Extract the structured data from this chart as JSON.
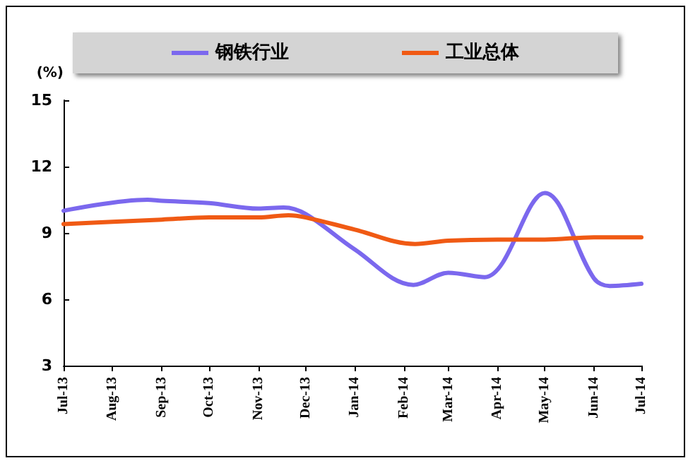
{
  "chart_data": {
    "type": "line",
    "ylabel": "(%)",
    "legend": "top",
    "grid": false,
    "marker": "none",
    "line_style": "solid",
    "xlim": [
      "2013-07-01",
      "2014-07-01"
    ],
    "xticks": [
      {
        "value": "2013-07-01",
        "label": "Jul-13"
      },
      {
        "value": "2013-08-01",
        "label": "Aug-13"
      },
      {
        "value": "2013-09-01",
        "label": "Sep-13"
      },
      {
        "value": "2013-10-01",
        "label": "Oct-13"
      },
      {
        "value": "2013-11-01",
        "label": "Nov-13"
      },
      {
        "value": "2013-12-01",
        "label": "Dec-13"
      },
      {
        "value": "2014-01-01",
        "label": "Jan-14"
      },
      {
        "value": "2014-02-01",
        "label": "Feb-14"
      },
      {
        "value": "2014-03-01",
        "label": "Mar-14"
      },
      {
        "value": "2014-04-01",
        "label": "Apr-14"
      },
      {
        "value": "2014-05-01",
        "label": "May-14"
      },
      {
        "value": "2014-06-01",
        "label": "Jun-14"
      },
      {
        "value": "2014-07-01",
        "label": "Jul-14"
      }
    ],
    "ylim": [
      3,
      15
    ],
    "yticks": [
      3,
      6,
      9,
      12,
      15
    ],
    "series": [
      {
        "name": "钢铁行业",
        "color": "#7b68ee",
        "x": [
          "2013-07-01",
          "2013-08-23",
          "2013-09-01",
          "2013-10-01",
          "2013-11-01",
          "2013-11-17",
          "2013-12-01",
          "2014-01-01",
          "2014-02-07",
          "2014-03-01",
          "2014-03-24",
          "2014-05-01",
          "2014-06-01",
          "2014-06-11",
          "2014-07-01"
        ],
        "values": [
          10.0,
          10.5,
          10.45,
          10.35,
          10.1,
          10.15,
          9.85,
          8.25,
          6.65,
          7.2,
          7.0,
          10.8,
          6.95,
          6.6,
          6.7
        ]
      },
      {
        "name": "工业总体",
        "color": "#f05a14",
        "x": [
          "2013-07-01",
          "2013-08-01",
          "2013-09-01",
          "2013-10-01",
          "2013-11-01",
          "2013-11-20",
          "2013-12-01",
          "2014-01-01",
          "2014-02-08",
          "2014-03-01",
          "2014-04-01",
          "2014-05-01",
          "2014-06-01",
          "2014-07-01"
        ],
        "values": [
          9.4,
          9.5,
          9.6,
          9.7,
          9.7,
          9.8,
          9.7,
          9.15,
          8.5,
          8.65,
          8.7,
          8.7,
          8.8,
          8.8
        ]
      }
    ]
  }
}
